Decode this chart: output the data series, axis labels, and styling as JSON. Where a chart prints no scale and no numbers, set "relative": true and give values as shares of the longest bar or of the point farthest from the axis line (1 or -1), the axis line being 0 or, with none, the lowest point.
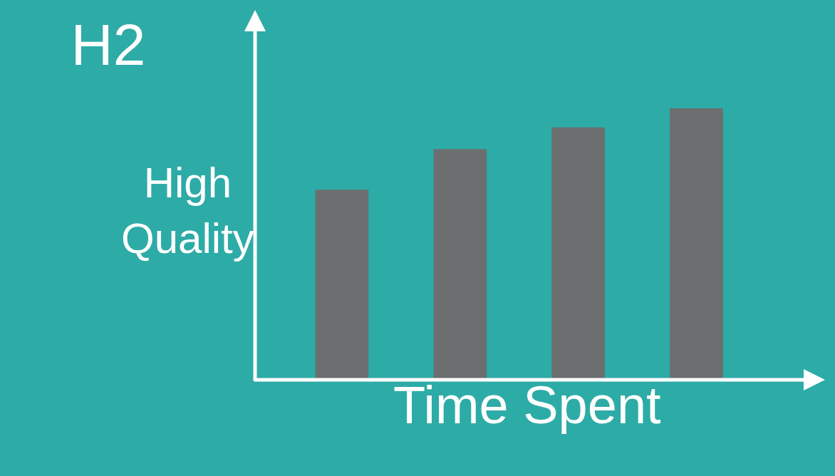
{
  "chart_data": {
    "type": "bar",
    "title": "H2",
    "xlabel": "Time Spent",
    "ylabel": "High\nQuality",
    "categories": [
      null,
      null,
      null,
      null
    ],
    "values": [
      0.7,
      0.85,
      0.93,
      1
    ],
    "color": "#6b6f70",
    "relative": true
  }
}
